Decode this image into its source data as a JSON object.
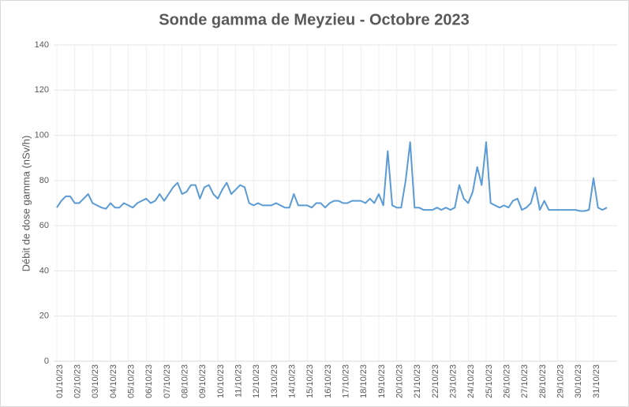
{
  "chart_data": {
    "type": "line",
    "title": "Sonde gamma de Meyzieu - Octobre 2023",
    "y_label": "Débit de dose gamma (nSv/h)",
    "color": "#5b9bd5",
    "grid": true,
    "ylim": [
      0,
      140
    ],
    "yticks": [
      0,
      20,
      40,
      60,
      80,
      100,
      120,
      140
    ],
    "categories": [
      "01/10/23",
      null,
      null,
      null,
      "02/10/23",
      null,
      null,
      null,
      "03/10/23",
      null,
      null,
      null,
      "04/10/23",
      null,
      null,
      null,
      "05/10/23",
      null,
      null,
      null,
      "06/10/23",
      null,
      null,
      null,
      "07/10/23",
      null,
      null,
      null,
      "08/10/23",
      null,
      null,
      null,
      "09/10/23",
      null,
      null,
      null,
      "10/10/23",
      null,
      null,
      null,
      "11/10/23",
      null,
      null,
      null,
      "12/10/23",
      null,
      null,
      null,
      "13/10/23",
      null,
      null,
      null,
      "14/10/23",
      null,
      null,
      null,
      "15/10/23",
      null,
      null,
      null,
      "16/10/23",
      null,
      null,
      null,
      "17/10/23",
      null,
      null,
      null,
      "18/10/23",
      null,
      null,
      null,
      "19/10/23",
      null,
      null,
      null,
      "20/10/23",
      null,
      null,
      null,
      "21/10/23",
      null,
      null,
      null,
      "22/10/23",
      null,
      null,
      null,
      "23/10/23",
      null,
      null,
      null,
      "24/10/23",
      null,
      null,
      null,
      "25/10/23",
      null,
      null,
      null,
      "26/10/23",
      null,
      null,
      null,
      "27/10/23",
      null,
      null,
      null,
      "28/10/23",
      null,
      null,
      null,
      "29/10/23",
      null,
      null,
      null,
      "30/10/23",
      null,
      null,
      null,
      "31/10/23",
      null,
      null,
      null
    ],
    "values": [
      68,
      71,
      73,
      73,
      70,
      70,
      72,
      74,
      70,
      69,
      68,
      67.5,
      70,
      68,
      68,
      70,
      69,
      68,
      70,
      71,
      72,
      70,
      71,
      74,
      71,
      74,
      77,
      79,
      74,
      75,
      78,
      78,
      72,
      77,
      78,
      74,
      72,
      76,
      79,
      74,
      76,
      78,
      77,
      70,
      69,
      70,
      69,
      69,
      69,
      70,
      69,
      68,
      68,
      74,
      69,
      69,
      69,
      68,
      70,
      70,
      68,
      70,
      71,
      71,
      70,
      70,
      71,
      71,
      71,
      70,
      72,
      70,
      74,
      69,
      93,
      69,
      68,
      68,
      80,
      97,
      68,
      68,
      67,
      67,
      67,
      68,
      67,
      68,
      67,
      68,
      78,
      72,
      70,
      75,
      86,
      78,
      97,
      70,
      69,
      68,
      69,
      68,
      71,
      72,
      67,
      68,
      70,
      77,
      67,
      71,
      67,
      67,
      67,
      67,
      67,
      67,
      67,
      66.5,
      66.5,
      67,
      81,
      68,
      67,
      68
    ]
  }
}
